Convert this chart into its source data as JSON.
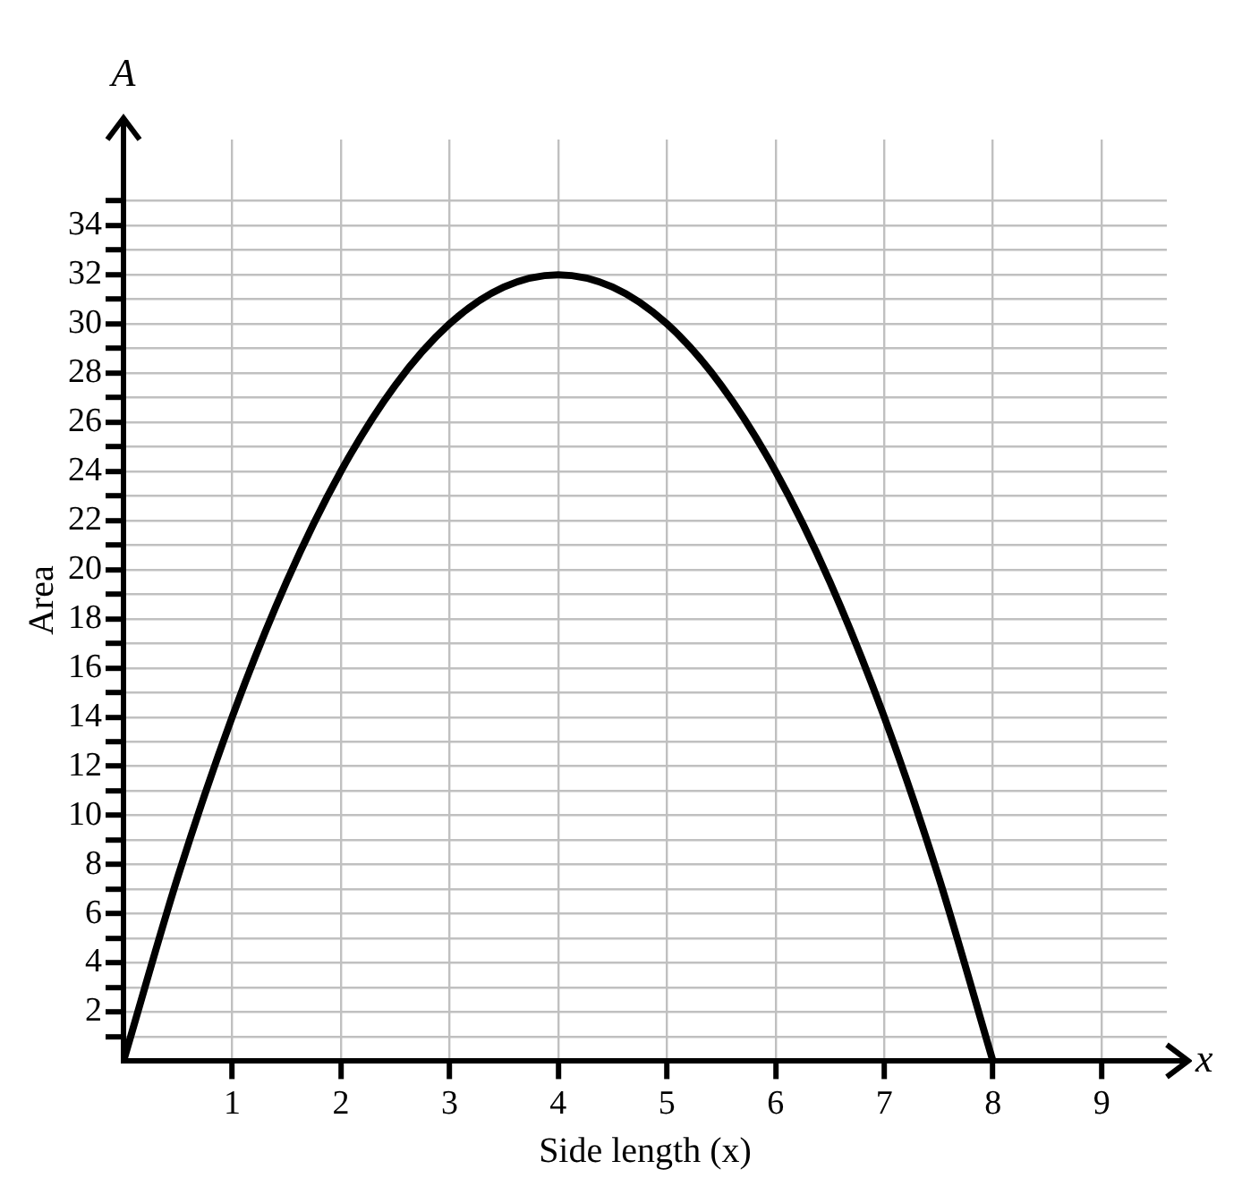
{
  "chart_data": {
    "type": "line",
    "xlabel": "Side length (x)",
    "ylabel": "Area",
    "annotations": [
      "A",
      "x"
    ],
    "x": [
      0,
      0.5,
      1,
      1.5,
      2,
      2.5,
      3,
      3.5,
      4,
      4.5,
      5,
      5.5,
      6,
      6.5,
      7,
      7.5,
      8
    ],
    "series": [
      {
        "color": "#000000",
        "values": [
          0,
          7.5,
          14,
          19.5,
          24,
          27.5,
          30,
          31.5,
          32,
          31.5,
          30,
          27.5,
          24,
          19.5,
          14,
          7.5,
          0
        ]
      }
    ],
    "xlim": [
      0,
      9.6
    ],
    "ylim": [
      0,
      37.5
    ],
    "xticks": [
      1,
      2,
      3,
      4,
      5,
      6,
      7,
      8,
      9
    ],
    "yticks": [
      {
        "value": 1,
        "label": null
      },
      2,
      {
        "value": 3,
        "label": null
      },
      4,
      {
        "value": 5,
        "label": null
      },
      6,
      {
        "value": 7,
        "label": null
      },
      8,
      {
        "value": 9,
        "label": null
      },
      10,
      {
        "value": 11,
        "label": null
      },
      12,
      {
        "value": 13,
        "label": null
      },
      14,
      {
        "value": 15,
        "label": null
      },
      16,
      {
        "value": 17,
        "label": null
      },
      18,
      {
        "value": 19,
        "label": null
      },
      20,
      {
        "value": 21,
        "label": null
      },
      22,
      {
        "value": 23,
        "label": null
      },
      24,
      {
        "value": 25,
        "label": null
      },
      26,
      {
        "value": 27,
        "label": null
      },
      28,
      {
        "value": 29,
        "label": null
      },
      30,
      {
        "value": 31,
        "label": null
      },
      32,
      {
        "value": 33,
        "label": null
      },
      34,
      {
        "value": 35,
        "label": null
      }
    ],
    "grid": true,
    "legend": false,
    "marker": "none",
    "line_style": "solid"
  }
}
